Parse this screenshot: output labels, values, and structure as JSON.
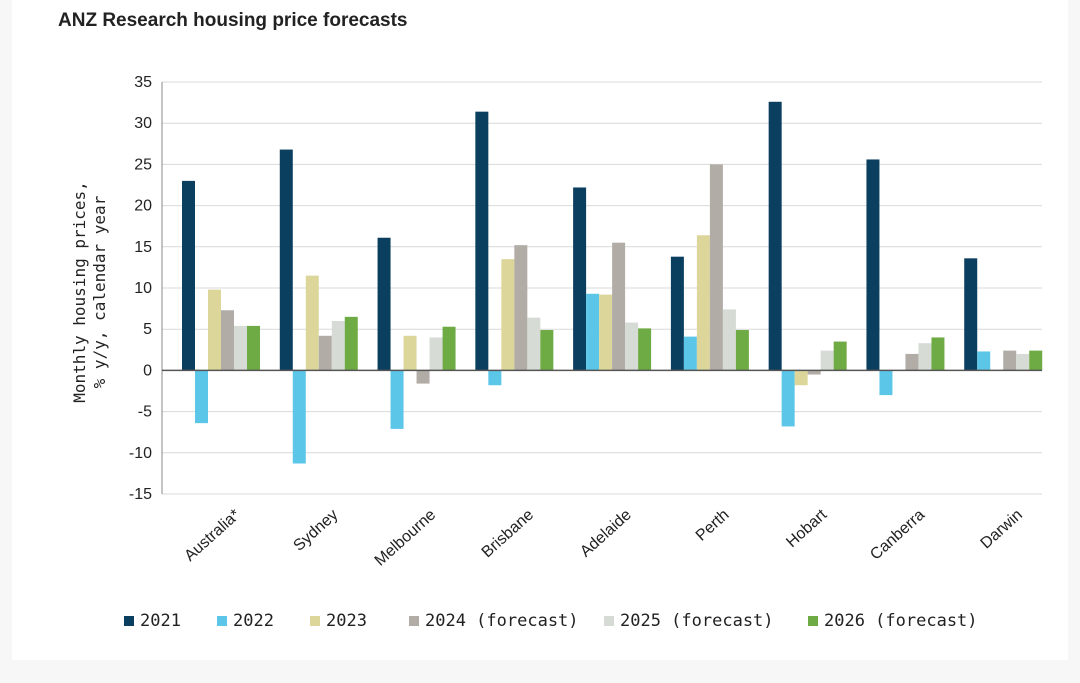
{
  "chart_data": {
    "type": "bar",
    "title": "ANZ Research housing price forecasts",
    "ylabel": [
      "Monthly housing prices,",
      "% y/y, calendar year"
    ],
    "xlabel": "",
    "ylim": [
      -15,
      35
    ],
    "yticks": [
      35,
      30,
      25,
      20,
      15,
      10,
      5,
      0,
      -5,
      -10,
      -15
    ],
    "grid": true,
    "legend": "bottom",
    "categories": [
      "Australia*",
      "Sydney",
      "Melbourne",
      "Brisbane",
      "Adelaide",
      "Perth",
      "Hobart",
      "Canberra",
      "Darwin"
    ],
    "series": [
      {
        "name": "2021",
        "color": "#0b3f5f",
        "values": [
          23.0,
          26.8,
          16.1,
          31.4,
          22.2,
          13.8,
          32.6,
          25.6,
          13.6
        ]
      },
      {
        "name": "2022",
        "color": "#5bc6e8",
        "values": [
          -6.4,
          -11.3,
          -7.1,
          -1.8,
          9.3,
          4.1,
          -6.8,
          -3.0,
          2.3
        ]
      },
      {
        "name": "2023",
        "color": "#dcd69a",
        "values": [
          9.8,
          11.5,
          4.2,
          13.5,
          9.2,
          16.4,
          -1.8,
          0.0,
          0.0
        ]
      },
      {
        "name": "2024 (forecast)",
        "color": "#b1aca6",
        "values": [
          7.3,
          4.2,
          -1.6,
          15.2,
          15.5,
          25.0,
          -0.5,
          2.0,
          2.4
        ]
      },
      {
        "name": "2025 (forecast)",
        "color": "#d6dbd6",
        "values": [
          5.4,
          6.0,
          4.0,
          6.4,
          5.8,
          7.4,
          2.4,
          3.3,
          2.0
        ]
      },
      {
        "name": "2026 (forecast)",
        "color": "#6fab44",
        "values": [
          5.4,
          6.5,
          5.3,
          4.9,
          5.1,
          4.9,
          3.5,
          4.0,
          2.4
        ]
      }
    ]
  }
}
